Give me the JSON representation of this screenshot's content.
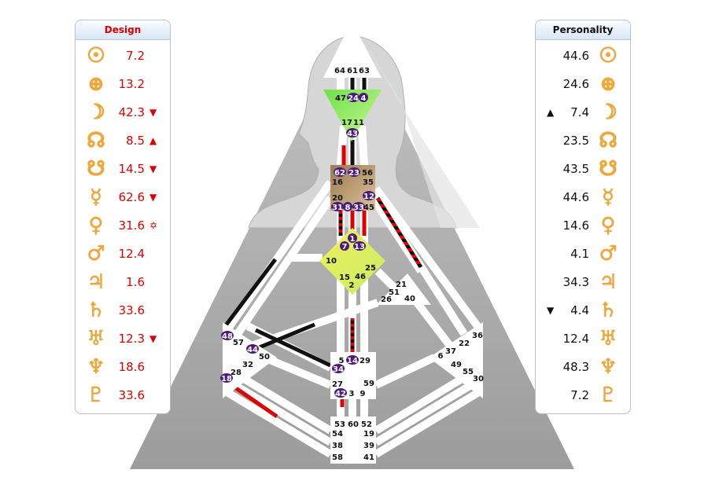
{
  "design": {
    "title": "Design",
    "rows": [
      {
        "planet": "sun",
        "symbol": "☉",
        "value": "7.2",
        "mark": ""
      },
      {
        "planet": "earth",
        "symbol": "⊕",
        "value": "13.2",
        "mark": ""
      },
      {
        "planet": "moon",
        "symbol": "☽",
        "value": "42.3",
        "mark": "▼"
      },
      {
        "planet": "north-node",
        "symbol": "☊",
        "value": "8.5",
        "mark": "▲"
      },
      {
        "planet": "south-node",
        "symbol": "☋",
        "value": "14.5",
        "mark": "▼"
      },
      {
        "planet": "mercury",
        "symbol": "☿",
        "value": "62.6",
        "mark": "▼"
      },
      {
        "planet": "venus",
        "symbol": "♀",
        "value": "31.6",
        "mark": "✡"
      },
      {
        "planet": "mars",
        "symbol": "♂",
        "value": "12.4",
        "mark": ""
      },
      {
        "planet": "jupiter",
        "symbol": "♃",
        "value": "1.6",
        "mark": ""
      },
      {
        "planet": "saturn",
        "symbol": "♄",
        "value": "33.6",
        "mark": ""
      },
      {
        "planet": "uranus",
        "symbol": "♅",
        "value": "12.3",
        "mark": "▼"
      },
      {
        "planet": "neptune",
        "symbol": "♆",
        "value": "18.6",
        "mark": ""
      },
      {
        "planet": "pluto",
        "symbol": "♇",
        "value": "33.6",
        "mark": ""
      }
    ]
  },
  "personality": {
    "title": "Personality",
    "rows": [
      {
        "planet": "sun",
        "symbol": "☉",
        "value": "44.6",
        "mark": ""
      },
      {
        "planet": "earth",
        "symbol": "⊕",
        "value": "24.6",
        "mark": ""
      },
      {
        "planet": "moon",
        "symbol": "☽",
        "value": "7.4",
        "mark": "▲"
      },
      {
        "planet": "north-node",
        "symbol": "☊",
        "value": "23.5",
        "mark": ""
      },
      {
        "planet": "south-node",
        "symbol": "☋",
        "value": "43.5",
        "mark": ""
      },
      {
        "planet": "mercury",
        "symbol": "☿",
        "value": "44.6",
        "mark": ""
      },
      {
        "planet": "venus",
        "symbol": "♀",
        "value": "14.6",
        "mark": ""
      },
      {
        "planet": "mars",
        "symbol": "♂",
        "value": "4.1",
        "mark": ""
      },
      {
        "planet": "jupiter",
        "symbol": "♃",
        "value": "34.3",
        "mark": ""
      },
      {
        "planet": "saturn",
        "symbol": "♄",
        "value": "4.4",
        "mark": "▼"
      },
      {
        "planet": "uranus",
        "symbol": "♅",
        "value": "12.4",
        "mark": ""
      },
      {
        "planet": "neptune",
        "symbol": "♆",
        "value": "48.3",
        "mark": ""
      },
      {
        "planet": "pluto",
        "symbol": "♇",
        "value": "7.2",
        "mark": ""
      }
    ]
  },
  "colors": {
    "design": "#e00000",
    "personality": "#111111",
    "activated_gate": "#4b1a7a",
    "gold": "#f0a830"
  },
  "centers": {
    "head": {
      "gates": [
        "64",
        "61",
        "63"
      ]
    },
    "ajna": {
      "gates": [
        "47",
        "24",
        "4",
        "17",
        "11",
        "43"
      ]
    },
    "throat": {
      "gates": [
        "62",
        "23",
        "56",
        "16",
        "35",
        "20",
        "12",
        "31",
        "8",
        "33",
        "45"
      ]
    },
    "g": {
      "gates": [
        "1",
        "7",
        "13",
        "10",
        "25",
        "15",
        "46",
        "2"
      ]
    },
    "heart": {
      "gates": [
        "21",
        "51",
        "26",
        "40"
      ]
    },
    "spleen": {
      "gates": [
        "48",
        "57",
        "44",
        "50",
        "32",
        "28",
        "18"
      ]
    },
    "solar_plexus": {
      "gates": [
        "36",
        "22",
        "37",
        "6",
        "49",
        "55",
        "30"
      ]
    },
    "sacral": {
      "gates": [
        "5",
        "14",
        "29",
        "34",
        "27",
        "59",
        "42",
        "3",
        "9"
      ]
    },
    "root": {
      "gates": [
        "53",
        "60",
        "52",
        "54",
        "19",
        "38",
        "39",
        "58",
        "41"
      ]
    }
  }
}
